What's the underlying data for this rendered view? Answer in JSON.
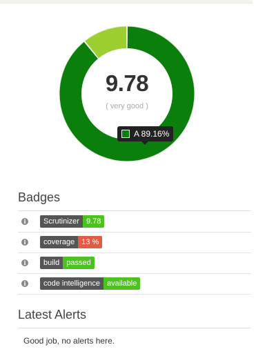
{
  "score": {
    "value": "9.78",
    "rating": "( very good )"
  },
  "quality_distribution": {
    "segments": [
      {
        "grade": "A",
        "percent": 89.16,
        "color": "#0b7f0b"
      },
      {
        "grade": "other",
        "percent": 10.84,
        "color": "#9ccf2f"
      }
    ],
    "tooltip": {
      "label": "A 89.16%",
      "swatch_color": "#0b7f0b"
    }
  },
  "badges": {
    "title": "Badges",
    "items": [
      {
        "left": "Scrutinizer",
        "right": "9.78",
        "right_color": "#4cc21f"
      },
      {
        "left": "coverage",
        "right": "13 %",
        "right_color": "#e05d44"
      },
      {
        "left": "build",
        "right": "passed",
        "right_color": "#4cc21f"
      },
      {
        "left": "code intelligence",
        "right": "available",
        "right_color": "#4cc21f"
      }
    ]
  },
  "alerts": {
    "title": "Latest Alerts",
    "message": "Good job, no alerts here."
  }
}
